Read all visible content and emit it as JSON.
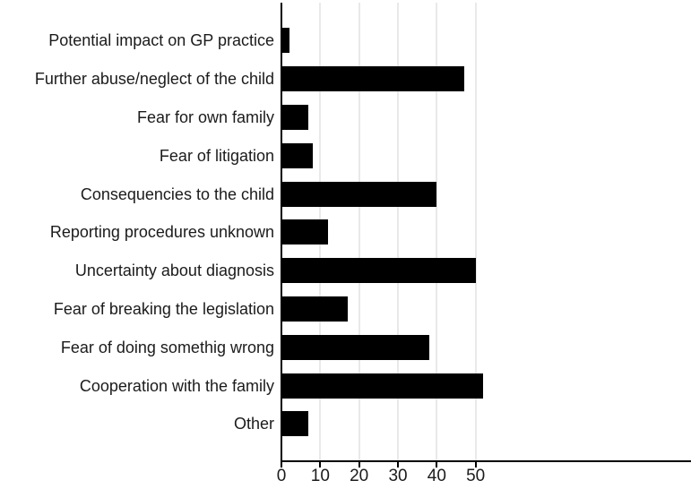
{
  "chart_data": {
    "type": "bar",
    "orientation": "horizontal",
    "title": "",
    "xlabel": "",
    "ylabel": "",
    "categories": [
      "Potential impact on GP practice",
      "Further abuse/neglect of the child",
      "Fear for own family",
      "Fear of litigation",
      "Consequencies to the child",
      "Reporting procedures unknown",
      "Uncertainty about diagnosis",
      "Fear of breaking the legislation",
      "Fear of doing somethig wrong",
      "Cooperation with the family",
      "Other"
    ],
    "values": [
      2,
      47,
      7,
      8,
      40,
      12,
      50,
      17,
      38,
      52,
      7
    ],
    "x_ticks": [
      0,
      10,
      20,
      30,
      40,
      50
    ],
    "xlim": [
      0,
      105
    ],
    "grid": true,
    "legend_position": "none",
    "colors": {
      "bar": "#000000",
      "axis": "#000000",
      "gridline": "#e9e9e9",
      "text": "#1b1b1b",
      "background": "#ffffff"
    }
  }
}
